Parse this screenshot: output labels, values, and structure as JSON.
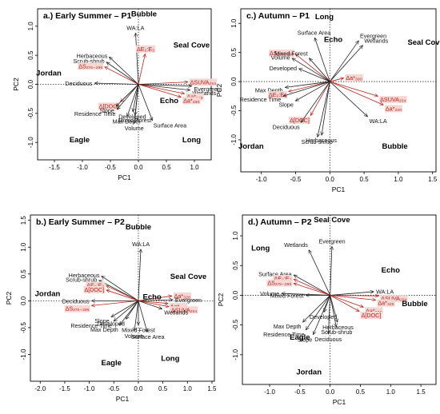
{
  "colors": {
    "black_arrow": "#222222",
    "red_arrow": "#b4231c",
    "red_label_bg": "#f7d7d4"
  },
  "chart_data": [
    {
      "type": "scatter",
      "title": "a.) Early Summer – P1",
      "xlabel": "PC1",
      "ylabel": "PC2",
      "xlim": [
        -1.8,
        1.3
      ],
      "ylim": [
        -1.3,
        1.3
      ],
      "xticks": [
        "-1.5",
        "-1.0",
        "-0.5",
        "0.0",
        "0.5",
        "1.0"
      ],
      "yticks": [
        "-1.0",
        "-0.5",
        "0.0",
        "0.5",
        "1.0"
      ],
      "xtick_values": [
        -1.5,
        -1.0,
        -0.5,
        0.0,
        0.5,
        1.0
      ],
      "ytick_values": [
        -1.0,
        -0.5,
        0.0,
        0.5,
        1.0
      ],
      "sites": [
        {
          "name": "Bubble",
          "x": 0.1,
          "y": 1.17
        },
        {
          "name": "Seal Cove",
          "x": 0.95,
          "y": 0.63
        },
        {
          "name": "Jordan",
          "x": -1.6,
          "y": 0.15
        },
        {
          "name": "Echo",
          "x": 0.55,
          "y": -0.32
        },
        {
          "name": "Eagle",
          "x": -1.05,
          "y": -1.0
        },
        {
          "name": "Long",
          "x": 0.95,
          "y": -1.0
        }
      ],
      "vectors": [
        {
          "label": "WA:LA",
          "x": -0.05,
          "y": 0.88,
          "red": false
        },
        {
          "label": "ΔE₂:E₃",
          "x": 0.12,
          "y": 0.52,
          "red": true
        },
        {
          "label": "Herbaceous",
          "x": -0.52,
          "y": 0.47,
          "red": false
        },
        {
          "label": "Scrub-shrub",
          "x": -0.57,
          "y": 0.38,
          "red": false
        },
        {
          "label": "ΔS₂₇₅₋₂₉₅",
          "x": -0.6,
          "y": 0.3,
          "red": true
        },
        {
          "label": "Deciduous",
          "x": -0.78,
          "y": 0.02,
          "red": false
        },
        {
          "label": "ΔSUVA₂₅₄",
          "x": 0.88,
          "y": 0.04,
          "red": true
        },
        {
          "label": "Evergreen",
          "x": 0.95,
          "y": -0.03,
          "red": false
        },
        {
          "label": "Wetlands",
          "x": 0.92,
          "y": -0.1,
          "red": false
        },
        {
          "label": "Δa*₃₂₀",
          "x": 0.82,
          "y": -0.16,
          "red": true
        },
        {
          "label": "Δa*₃₈₀",
          "x": 0.76,
          "y": -0.22,
          "red": true
        },
        {
          "label": "Δ[DOC]",
          "x": -0.32,
          "y": -0.3,
          "red": true
        },
        {
          "label": "Slope",
          "x": -0.4,
          "y": -0.38,
          "red": false
        },
        {
          "label": "Residence Time",
          "x": -0.38,
          "y": -0.43,
          "red": false
        },
        {
          "label": "Max Depth",
          "x": -0.2,
          "y": -0.55,
          "red": false
        },
        {
          "label": "Developed",
          "x": -0.1,
          "y": -0.47,
          "red": false
        },
        {
          "label": "Mixed Forest",
          "x": -0.06,
          "y": -0.53,
          "red": false
        },
        {
          "label": "Volume",
          "x": -0.07,
          "y": -0.67,
          "red": false
        },
        {
          "label": "Surface Area",
          "x": 0.25,
          "y": -0.62,
          "red": false
        }
      ]
    },
    {
      "type": "scatter",
      "title": "c.) Autumn – P1",
      "xlabel": "PC1",
      "ylabel": "PC2",
      "xlim": [
        -1.3,
        1.55
      ],
      "ylim": [
        -1.55,
        1.25
      ],
      "xticks": [
        "-1.0",
        "-0.5",
        "0.0",
        "0.5",
        "1.0",
        "1.5"
      ],
      "yticks": [
        "-1.0",
        "-0.5",
        "0.0",
        "0.5",
        "1.0"
      ],
      "xtick_values": [
        -1.0,
        -0.5,
        0.0,
        0.5,
        1.0,
        1.5
      ],
      "ytick_values": [
        -1.0,
        -0.5,
        0.0,
        0.5,
        1.0
      ],
      "sites": [
        {
          "name": "Long",
          "x": -0.08,
          "y": 1.07
        },
        {
          "name": "Seal Cove",
          "x": 1.4,
          "y": 0.63
        },
        {
          "name": "Echo",
          "x": 0.05,
          "y": 0.68
        },
        {
          "name": "Jordan",
          "x": -1.15,
          "y": -1.15
        },
        {
          "name": "Bubble",
          "x": 0.95,
          "y": -1.15
        }
      ],
      "vectors": [
        {
          "label": "Surface Area",
          "x": -0.22,
          "y": 0.75,
          "red": false
        },
        {
          "label": "Evergreen",
          "x": 0.42,
          "y": 0.7,
          "red": false
        },
        {
          "label": "Wetlands",
          "x": 0.48,
          "y": 0.62,
          "red": false
        },
        {
          "label": "ΔS₂₇₅₋₂₉₅",
          "x": -0.5,
          "y": 0.47,
          "red": true
        },
        {
          "label": "Volume",
          "x": -0.55,
          "y": 0.4,
          "red": false
        },
        {
          "label": "Mixed Forest",
          "x": -0.3,
          "y": 0.4,
          "red": false
        },
        {
          "label": "Developed",
          "x": -0.45,
          "y": 0.22,
          "red": false
        },
        {
          "label": "Δa*₃₈₀",
          "x": 0.2,
          "y": 0.06,
          "red": true
        },
        {
          "label": "Max Depth",
          "x": -0.65,
          "y": -0.1,
          "red": false
        },
        {
          "label": "ΔE₂:E₃",
          "x": -0.6,
          "y": -0.17,
          "red": true
        },
        {
          "label": "Residence Time",
          "x": -0.68,
          "y": -0.25,
          "red": false
        },
        {
          "label": "Slope",
          "x": -0.5,
          "y": -0.33,
          "red": false
        },
        {
          "label": "ΔSUVA₂₅₄",
          "x": 0.7,
          "y": -0.25,
          "red": true
        },
        {
          "label": "Δa*₃₂₀",
          "x": 0.78,
          "y": -0.4,
          "red": true
        },
        {
          "label": "WA:LA",
          "x": 0.55,
          "y": -0.6,
          "red": false
        },
        {
          "label": "Δ[DOC]",
          "x": -0.28,
          "y": -0.58,
          "red": true
        },
        {
          "label": "Deciduous",
          "x": -0.42,
          "y": -0.7,
          "red": false
        },
        {
          "label": "Herbaceous",
          "x": -0.12,
          "y": -0.92,
          "red": false
        },
        {
          "label": "Scrub-shrub",
          "x": -0.18,
          "y": -0.95,
          "red": false
        }
      ]
    },
    {
      "type": "scatter",
      "title": "b.) Early Summer – P2",
      "xlabel": "PC1",
      "ylabel": "PC2",
      "xlim": [
        -2.2,
        1.55
      ],
      "ylim": [
        -1.5,
        1.6
      ],
      "xticks": [
        "-2.0",
        "-1.5",
        "-1.0",
        "-0.5",
        "0.0",
        "0.5",
        "1.0",
        "1.5"
      ],
      "yticks": [
        "-1.0",
        "-0.5",
        "0.0",
        "0.5",
        "1.0",
        "1.5"
      ],
      "xtick_values": [
        -2.0,
        -1.5,
        -1.0,
        -0.5,
        0.0,
        0.5,
        1.0,
        1.5
      ],
      "ytick_values": [
        -1.0,
        -0.5,
        0.0,
        0.5,
        1.0,
        1.5
      ],
      "sites": [
        {
          "name": "Bubble",
          "x": 0.0,
          "y": 1.33
        },
        {
          "name": "Seal Cove",
          "x": 1.02,
          "y": 0.41
        },
        {
          "name": "Jordan",
          "x": -1.85,
          "y": 0.09
        },
        {
          "name": "Echo",
          "x": 0.28,
          "y": 0.03
        },
        {
          "name": "Eagle",
          "x": -0.55,
          "y": -1.2
        },
        {
          "name": "Long",
          "x": 0.65,
          "y": -1.12
        }
      ],
      "vectors": [
        {
          "label": "WA:LA",
          "x": 0.05,
          "y": 0.96,
          "red": false
        },
        {
          "label": "Herbaceous",
          "x": -0.75,
          "y": 0.46,
          "red": false
        },
        {
          "label": "Scrub-shrub",
          "x": -0.8,
          "y": 0.38,
          "red": false
        },
        {
          "label": "ΔE₂:E₃",
          "x": -0.65,
          "y": 0.28,
          "red": true
        },
        {
          "label": "Δ[DOC]",
          "x": -0.65,
          "y": 0.2,
          "red": true
        },
        {
          "label": "Deciduous",
          "x": -0.95,
          "y": 0.0,
          "red": false
        },
        {
          "label": "ΔS₂₇₅₋₂₉₅",
          "x": -0.95,
          "y": -0.09,
          "red": true
        },
        {
          "label": "Δa*₃₂₀",
          "x": 0.68,
          "y": 0.09,
          "red": true
        },
        {
          "label": "Evergreen",
          "x": 0.7,
          "y": 0.02,
          "red": false
        },
        {
          "label": "Δa*₃₈₀",
          "x": 0.6,
          "y": -0.05,
          "red": true
        },
        {
          "label": "ΔSUVA₂₅₄",
          "x": 0.62,
          "y": -0.11,
          "red": true
        },
        {
          "label": "Wetlands",
          "x": 0.48,
          "y": -0.15,
          "red": false
        },
        {
          "label": "Slope",
          "x": -0.55,
          "y": -0.3,
          "red": false
        },
        {
          "label": "Residence Time",
          "x": -0.5,
          "y": -0.38,
          "red": false
        },
        {
          "label": "Developed",
          "x": -0.25,
          "y": -0.34,
          "red": false
        },
        {
          "label": "Max Depth",
          "x": -0.38,
          "y": -0.45,
          "red": false
        },
        {
          "label": "Mixed Forest",
          "x": 0.0,
          "y": -0.45,
          "red": false
        },
        {
          "label": "Volume",
          "x": -0.08,
          "y": -0.56,
          "red": false
        },
        {
          "label": "Surface Area",
          "x": 0.18,
          "y": -0.58,
          "red": false
        }
      ]
    },
    {
      "type": "scatter",
      "title": "d.) Autumn – P2",
      "xlabel": "PC1",
      "ylabel": "PC2",
      "xlim": [
        -1.45,
        1.75
      ],
      "ylim": [
        -1.5,
        1.35
      ],
      "xticks": [
        "-1.0",
        "-0.5",
        "0.0",
        "0.5",
        "1.0",
        "1.5"
      ],
      "yticks": [
        "-1.0",
        "-0.5",
        "0.0",
        "0.5",
        "1.0"
      ],
      "xtick_values": [
        -1.0,
        -0.5,
        0.0,
        0.5,
        1.0,
        1.5
      ],
      "ytick_values": [
        -1.0,
        -0.5,
        0.0,
        0.5,
        1.0
      ],
      "sites": [
        {
          "name": "Seal Cove",
          "x": 0.03,
          "y": 1.23
        },
        {
          "name": "Long",
          "x": -1.15,
          "y": 0.75
        },
        {
          "name": "Echo",
          "x": 1.0,
          "y": 0.38
        },
        {
          "name": "Bubble",
          "x": 1.4,
          "y": -0.18
        },
        {
          "name": "Eagle",
          "x": -0.5,
          "y": -0.75
        },
        {
          "name": "Jordan",
          "x": -0.35,
          "y": -1.33
        }
      ],
      "vectors": [
        {
          "label": "Evergreen",
          "x": 0.03,
          "y": 0.82,
          "red": false
        },
        {
          "label": "Wetlands",
          "x": -0.35,
          "y": 0.76,
          "red": false
        },
        {
          "label": "Surface Area",
          "x": -0.6,
          "y": 0.34,
          "red": false
        },
        {
          "label": "ΔE₂:E₃",
          "x": -0.6,
          "y": 0.27,
          "red": true
        },
        {
          "label": "ΔS₂₇₅₋₂₉₅",
          "x": -0.6,
          "y": 0.2,
          "red": true
        },
        {
          "label": "Volume",
          "x": -0.8,
          "y": 0.03,
          "red": false
        },
        {
          "label": "Mixed Forest",
          "x": -0.4,
          "y": 0.0,
          "red": false
        },
        {
          "label": "WA:LA",
          "x": 0.72,
          "y": 0.06,
          "red": false
        },
        {
          "label": "ΔSUVA₂₅₄",
          "x": 0.8,
          "y": -0.01,
          "red": true
        },
        {
          "label": "Δa*₃₂₀",
          "x": 0.75,
          "y": -0.08,
          "red": true
        },
        {
          "label": "Δa*₃₈₀",
          "x": 0.55,
          "y": -0.2,
          "red": true
        },
        {
          "label": "Δ[DOC]",
          "x": 0.48,
          "y": -0.27,
          "red": true
        },
        {
          "label": "Max Depth",
          "x": -0.45,
          "y": -0.45,
          "red": false
        },
        {
          "label": "Developed",
          "x": -0.1,
          "y": -0.28,
          "red": false
        },
        {
          "label": "Residence Time",
          "x": -0.4,
          "y": -0.58,
          "red": false
        },
        {
          "label": "Slope",
          "x": -0.28,
          "y": -0.66,
          "red": false
        },
        {
          "label": "Deciduous",
          "x": -0.03,
          "y": -0.65,
          "red": false
        },
        {
          "label": "Herbaceous",
          "x": 0.12,
          "y": -0.45,
          "red": false
        },
        {
          "label": "Scrub-shrub",
          "x": 0.1,
          "y": -0.53,
          "red": false
        }
      ]
    }
  ]
}
